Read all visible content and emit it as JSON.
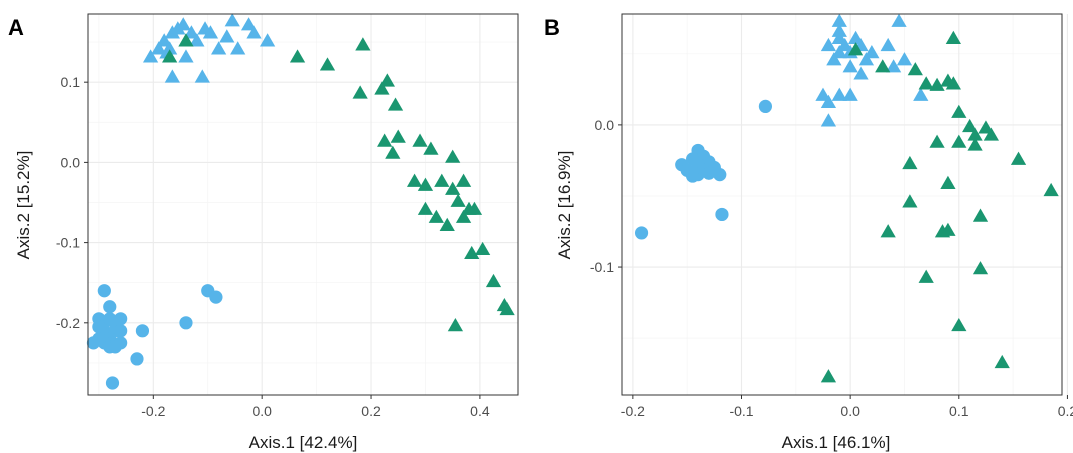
{
  "chart_data": [
    {
      "type": "scatter",
      "panel": "A",
      "xlabel": "Axis.1   [42.4%]",
      "ylabel": "Axis.2   [15.2%]",
      "xlim": [
        -0.32,
        0.47
      ],
      "ylim": [
        -0.29,
        0.185
      ],
      "x_ticks": [
        -0.2,
        0.0,
        0.2,
        0.4
      ],
      "x_tick_labels": [
        "-0.2",
        "0.0",
        "0.2",
        "0.4"
      ],
      "y_ticks": [
        -0.2,
        -0.1,
        0.0,
        0.1
      ],
      "y_tick_labels": [
        "-0.2",
        "-0.1",
        "0.0",
        "0.1"
      ],
      "grid": true,
      "legend": "none",
      "series": [
        {
          "marker": "circle",
          "color": "#56B4E9",
          "points": [
            [
              -0.29,
              -0.16
            ],
            [
              -0.28,
              -0.18
            ],
            [
              -0.3,
              -0.195
            ],
            [
              -0.29,
              -0.2
            ],
            [
              -0.28,
              -0.195
            ],
            [
              -0.27,
              -0.2
            ],
            [
              -0.26,
              -0.195
            ],
            [
              -0.3,
              -0.205
            ],
            [
              -0.29,
              -0.21
            ],
            [
              -0.27,
              -0.21
            ],
            [
              -0.26,
              -0.21
            ],
            [
              -0.28,
              -0.22
            ],
            [
              -0.29,
              -0.225
            ],
            [
              -0.3,
              -0.22
            ],
            [
              -0.26,
              -0.225
            ],
            [
              -0.28,
              -0.23
            ],
            [
              -0.27,
              -0.23
            ],
            [
              -0.31,
              -0.225
            ],
            [
              -0.22,
              -0.21
            ],
            [
              -0.23,
              -0.245
            ],
            [
              -0.275,
              -0.275
            ],
            [
              -0.14,
              -0.2
            ],
            [
              -0.1,
              -0.16
            ],
            [
              -0.085,
              -0.168
            ]
          ]
        },
        {
          "marker": "triangle",
          "color": "#56B4E9",
          "points": [
            [
              -0.205,
              0.13
            ],
            [
              -0.19,
              0.14
            ],
            [
              -0.18,
              0.15
            ],
            [
              -0.17,
              0.14
            ],
            [
              -0.165,
              0.16
            ],
            [
              -0.155,
              0.165
            ],
            [
              -0.145,
              0.17
            ],
            [
              -0.13,
              0.16
            ],
            [
              -0.12,
              0.15
            ],
            [
              -0.105,
              0.165
            ],
            [
              -0.095,
              0.16
            ],
            [
              -0.08,
              0.14
            ],
            [
              -0.065,
              0.155
            ],
            [
              -0.055,
              0.175
            ],
            [
              -0.045,
              0.14
            ],
            [
              -0.025,
              0.17
            ],
            [
              -0.015,
              0.16
            ],
            [
              0.01,
              0.15
            ],
            [
              -0.165,
              0.105
            ],
            [
              -0.11,
              0.105
            ],
            [
              -0.14,
              0.13
            ],
            [
              -0.175,
              0.135
            ]
          ]
        },
        {
          "marker": "triangle",
          "color": "#1A9670",
          "points": [
            [
              -0.17,
              0.13
            ],
            [
              -0.14,
              0.15
            ],
            [
              0.065,
              0.13
            ],
            [
              0.12,
              0.12
            ],
            [
              0.185,
              0.145
            ],
            [
              0.18,
              0.085
            ],
            [
              0.22,
              0.09
            ],
            [
              0.23,
              0.1
            ],
            [
              0.245,
              0.07
            ],
            [
              0.225,
              0.025
            ],
            [
              0.24,
              0.01
            ],
            [
              0.25,
              0.03
            ],
            [
              0.29,
              0.025
            ],
            [
              0.31,
              0.015
            ],
            [
              0.28,
              -0.025
            ],
            [
              0.3,
              -0.03
            ],
            [
              0.33,
              -0.025
            ],
            [
              0.35,
              -0.035
            ],
            [
              0.37,
              -0.025
            ],
            [
              0.35,
              0.005
            ],
            [
              0.36,
              -0.05
            ],
            [
              0.38,
              -0.06
            ],
            [
              0.3,
              -0.06
            ],
            [
              0.32,
              -0.07
            ],
            [
              0.34,
              -0.08
            ],
            [
              0.37,
              -0.07
            ],
            [
              0.39,
              -0.06
            ],
            [
              0.385,
              -0.115
            ],
            [
              0.405,
              -0.11
            ],
            [
              0.425,
              -0.15
            ],
            [
              0.445,
              -0.18
            ],
            [
              0.45,
              -0.185
            ],
            [
              0.355,
              -0.205
            ]
          ]
        }
      ]
    },
    {
      "type": "scatter",
      "panel": "B",
      "xlabel": "Axis.1   [46.1%]",
      "ylabel": "Axis.2   [16.9%]",
      "xlim": [
        -0.21,
        0.195
      ],
      "ylim": [
        -0.19,
        0.078
      ],
      "x_ticks": [
        -0.2,
        -0.1,
        0.0,
        0.1,
        0.2
      ],
      "x_tick_labels": [
        "-0.2",
        "-0.1",
        "0.0",
        "0.1",
        "0.2"
      ],
      "y_ticks": [
        -0.1,
        0.0
      ],
      "y_tick_labels": [
        "-0.1",
        "0.0"
      ],
      "grid": true,
      "legend": "none",
      "series": [
        {
          "marker": "circle",
          "color": "#56B4E9",
          "points": [
            [
              -0.14,
              -0.018
            ],
            [
              -0.135,
              -0.022
            ],
            [
              -0.145,
              -0.024
            ],
            [
              -0.13,
              -0.026
            ],
            [
              -0.14,
              -0.028
            ],
            [
              -0.155,
              -0.028
            ],
            [
              -0.125,
              -0.03
            ],
            [
              -0.135,
              -0.032
            ],
            [
              -0.15,
              -0.032
            ],
            [
              -0.13,
              -0.034
            ],
            [
              -0.14,
              -0.035
            ],
            [
              -0.12,
              -0.035
            ],
            [
              -0.145,
              -0.036
            ],
            [
              -0.078,
              0.013
            ],
            [
              -0.118,
              -0.063
            ],
            [
              -0.192,
              -0.076
            ]
          ]
        },
        {
          "marker": "triangle",
          "color": "#56B4E9",
          "points": [
            [
              -0.01,
              0.072
            ],
            [
              0.045,
              0.072
            ],
            [
              -0.02,
              0.055
            ],
            [
              -0.01,
              0.06
            ],
            [
              -0.005,
              0.055
            ],
            [
              0.0,
              0.05
            ],
            [
              0.005,
              0.06
            ],
            [
              0.01,
              0.055
            ],
            [
              0.015,
              0.045
            ],
            [
              0.02,
              0.05
            ],
            [
              -0.015,
              0.045
            ],
            [
              0.0,
              0.04
            ],
            [
              0.01,
              0.035
            ],
            [
              -0.01,
              0.065
            ],
            [
              0.04,
              0.04
            ],
            [
              0.05,
              0.045
            ],
            [
              -0.025,
              0.02
            ],
            [
              -0.01,
              0.02
            ],
            [
              -0.02,
              0.015
            ],
            [
              0.0,
              0.02
            ],
            [
              -0.02,
              0.002
            ],
            [
              0.035,
              0.055
            ],
            [
              0.065,
              0.02
            ],
            [
              -0.01,
              0.05
            ]
          ]
        },
        {
          "marker": "triangle",
          "color": "#1A9670",
          "points": [
            [
              0.095,
              0.06
            ],
            [
              0.005,
              0.052
            ],
            [
              0.03,
              0.04
            ],
            [
              0.06,
              0.038
            ],
            [
              0.07,
              0.028
            ],
            [
              0.08,
              0.027
            ],
            [
              0.09,
              0.03
            ],
            [
              0.095,
              0.028
            ],
            [
              0.1,
              0.008
            ],
            [
              0.11,
              -0.002
            ],
            [
              0.115,
              -0.008
            ],
            [
              0.125,
              -0.003
            ],
            [
              0.13,
              -0.008
            ],
            [
              0.08,
              -0.013
            ],
            [
              0.1,
              -0.013
            ],
            [
              0.115,
              -0.015
            ],
            [
              0.055,
              -0.028
            ],
            [
              0.09,
              -0.042
            ],
            [
              0.055,
              -0.055
            ],
            [
              0.12,
              -0.065
            ],
            [
              0.035,
              -0.076
            ],
            [
              0.085,
              -0.076
            ],
            [
              0.09,
              -0.075
            ],
            [
              0.155,
              -0.025
            ],
            [
              0.185,
              -0.047
            ],
            [
              0.07,
              -0.108
            ],
            [
              0.12,
              -0.102
            ],
            [
              0.1,
              -0.142
            ],
            [
              0.14,
              -0.168
            ],
            [
              -0.02,
              -0.178
            ]
          ]
        }
      ]
    }
  ],
  "panels": {
    "a": {
      "letter": "A",
      "xlabel": "Axis.1   [42.4%]",
      "ylabel": "Axis.2   [15.2%]",
      "x_tick_labels": [
        "-0.2",
        "0.0",
        "0.2",
        "0.4"
      ],
      "y_tick_labels": [
        "-0.2",
        "-0.1",
        "0.0",
        "0.1"
      ]
    },
    "b": {
      "letter": "B",
      "xlabel": "Axis.1   [46.1%]",
      "ylabel": "Axis.2   [16.9%]",
      "x_tick_labels": [
        "-0.2",
        "-0.1",
        "0.0",
        "0.1",
        "0.2"
      ],
      "y_tick_labels": [
        "-0.1",
        "0.0"
      ]
    }
  },
  "colors": {
    "light_blue": "#56B4E9",
    "green": "#1A9670",
    "grid": "#ebebeb",
    "frame": "#333333"
  }
}
